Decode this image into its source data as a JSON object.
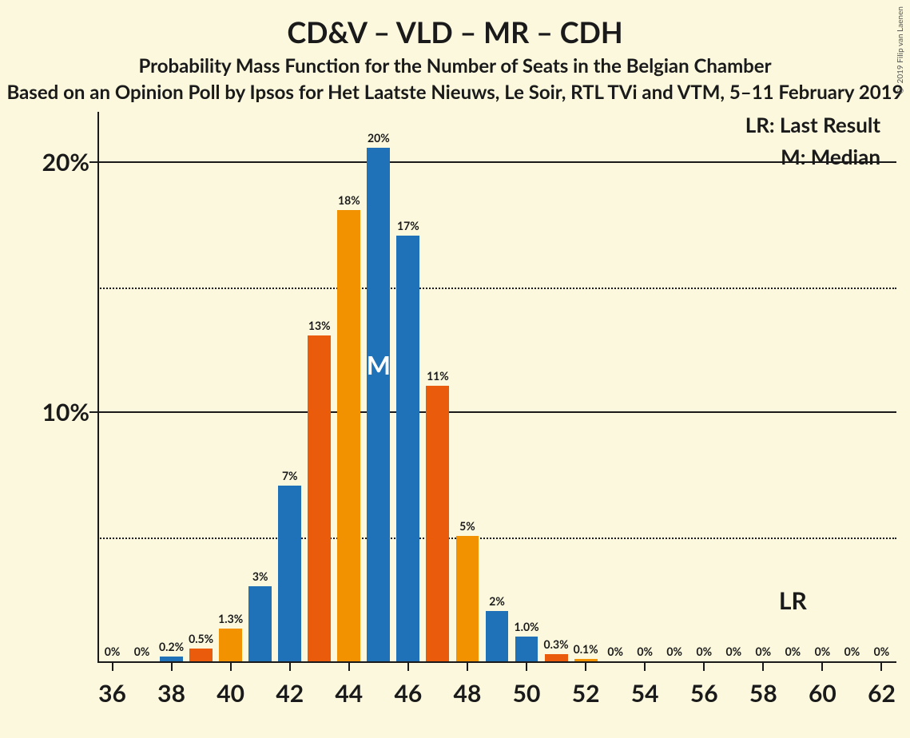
{
  "title": "CD&V – VLD – MR – CDH",
  "subtitle": "Probability Mass Function for the Number of Seats in the Belgian Chamber",
  "subtitle2": "Based on an Opinion Poll by Ipsos for Het Laatste Nieuws, Le Soir, RTL TVi and VTM, 5–11 February 2019",
  "copyright": "© 2019 Filip van Laenen",
  "legend": {
    "lr": "LR: Last Result",
    "m": "M: Median"
  },
  "chart": {
    "type": "bar",
    "background_color": "#fbf8dd",
    "axis_color": "#1a1a1a",
    "ylim": [
      0,
      22
    ],
    "y_major_ticks": [
      10,
      20
    ],
    "y_minor_ticks": [
      5,
      15
    ],
    "y_major_labels": [
      "10%",
      "20%"
    ],
    "x_tick_labels": [
      "36",
      "38",
      "40",
      "42",
      "44",
      "46",
      "48",
      "50",
      "52",
      "54",
      "56",
      "58",
      "60",
      "62"
    ],
    "x_tick_seats": [
      36,
      38,
      40,
      42,
      44,
      46,
      48,
      50,
      52,
      54,
      56,
      58,
      60,
      62
    ],
    "bar_width_ratio": 0.78,
    "bar_label_fontsize": 14,
    "colors": {
      "blue": "#1f71b8",
      "orange_dark": "#ea5b0c",
      "orange_light": "#f39200"
    },
    "bars": [
      {
        "seat": 36,
        "value": 0,
        "label": "0%",
        "color": "#1f71b8"
      },
      {
        "seat": 37,
        "value": 0,
        "label": "0%",
        "color": "#ea5b0c"
      },
      {
        "seat": 38,
        "value": 0.2,
        "label": "0.2%",
        "color": "#1f71b8"
      },
      {
        "seat": 39,
        "value": 0.5,
        "label": "0.5%",
        "color": "#ea5b0c"
      },
      {
        "seat": 40,
        "value": 1.3,
        "label": "1.3%",
        "color": "#f39200"
      },
      {
        "seat": 41,
        "value": 3,
        "label": "3%",
        "color": "#1f71b8"
      },
      {
        "seat": 42,
        "value": 7,
        "label": "7%",
        "color": "#1f71b8"
      },
      {
        "seat": 43,
        "value": 13,
        "label": "13%",
        "color": "#ea5b0c"
      },
      {
        "seat": 44,
        "value": 18,
        "label": "18%",
        "color": "#f39200"
      },
      {
        "seat": 45,
        "value": 20.5,
        "label": "20%",
        "color": "#1f71b8",
        "median": true
      },
      {
        "seat": 46,
        "value": 17,
        "label": "17%",
        "color": "#1f71b8"
      },
      {
        "seat": 47,
        "value": 11,
        "label": "11%",
        "color": "#ea5b0c"
      },
      {
        "seat": 48,
        "value": 5,
        "label": "5%",
        "color": "#f39200"
      },
      {
        "seat": 49,
        "value": 2,
        "label": "2%",
        "color": "#1f71b8"
      },
      {
        "seat": 50,
        "value": 1.0,
        "label": "1.0%",
        "color": "#1f71b8"
      },
      {
        "seat": 51,
        "value": 0.3,
        "label": "0.3%",
        "color": "#ea5b0c"
      },
      {
        "seat": 52,
        "value": 0.1,
        "label": "0.1%",
        "color": "#f39200"
      },
      {
        "seat": 53,
        "value": 0,
        "label": "0%",
        "color": "#1f71b8"
      },
      {
        "seat": 54,
        "value": 0,
        "label": "0%",
        "color": "#1f71b8"
      },
      {
        "seat": 55,
        "value": 0,
        "label": "0%",
        "color": "#ea5b0c"
      },
      {
        "seat": 56,
        "value": 0,
        "label": "0%",
        "color": "#f39200"
      },
      {
        "seat": 57,
        "value": 0,
        "label": "0%",
        "color": "#1f71b8"
      },
      {
        "seat": 58,
        "value": 0,
        "label": "0%",
        "color": "#1f71b8"
      },
      {
        "seat": 59,
        "value": 0,
        "label": "0%",
        "color": "#ea5b0c"
      },
      {
        "seat": 60,
        "value": 0,
        "label": "0%",
        "color": "#f39200"
      },
      {
        "seat": 61,
        "value": 0,
        "label": "0%",
        "color": "#1f71b8"
      },
      {
        "seat": 62,
        "value": 0,
        "label": "0%",
        "color": "#1f71b8"
      }
    ],
    "lr_seat": 59,
    "lr_text": "LR",
    "median_text": "M"
  }
}
